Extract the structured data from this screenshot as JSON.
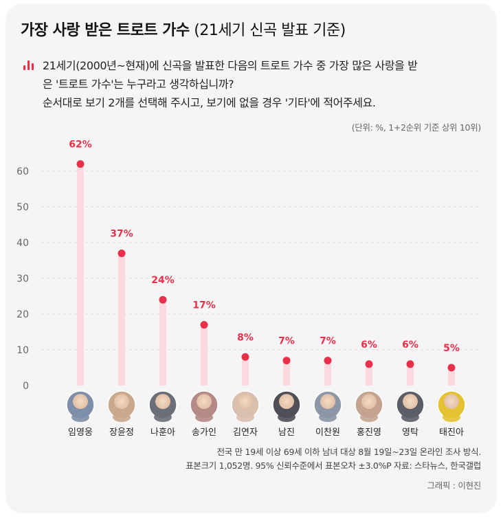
{
  "header": {
    "title_bold": "가장 사랑 받은 트로트 가수",
    "title_rest": " (21세기 신곡 발표 기준)"
  },
  "question": {
    "lines": [
      "21세기(2000년~현재)에 신곡을 발표한 다음의 트로트 가수 중 가장 많은 사랑을 받",
      "은 '트로트 가수'는 누구라고 생각하십니까?",
      "순서대로 보기 2개를 선택해 주시고, 보기에 없을 경우 '기타'에 적어주세요."
    ]
  },
  "unit_note": "(단위: %, 1+2순위 기준 상위 10위)",
  "chart_data": {
    "type": "bar",
    "categories": [
      "임영웅",
      "장윤정",
      "나훈아",
      "송가인",
      "김연자",
      "남진",
      "이찬원",
      "홍진영",
      "영탁",
      "태진아"
    ],
    "values": [
      62,
      37,
      24,
      17,
      8,
      7,
      7,
      6,
      6,
      5
    ],
    "value_labels": [
      "62%",
      "37%",
      "24%",
      "17%",
      "8%",
      "7%",
      "7%",
      "6%",
      "6%",
      "5%"
    ],
    "yticks": [
      0,
      10,
      20,
      30,
      40,
      50,
      60
    ],
    "ylim": [
      0,
      65
    ],
    "grid": true,
    "title": "",
    "xlabel": "",
    "ylabel": ""
  },
  "avatar_colors": [
    "#7d8fa8",
    "#c9a98c",
    "#6b6f77",
    "#b58a86",
    "#d8bfae",
    "#4f4f58",
    "#8d96a6",
    "#c4a490",
    "#5b5e66",
    "#e4c232"
  ],
  "colors": {
    "accent": "#e8304a",
    "bar": "#fcd9de",
    "grid": "#dddddd",
    "card": "#f5f5f5"
  },
  "footer": {
    "lines": [
      "전국 만 19세 이상 69세 이하 남녀 대상 8월 19일~23일 온라인 조사 방식.",
      "표본크기 1,052명. 95% 신뢰수준에서 표본오차 ±3.0%P 자료: 스타뉴스, 한국갤럽"
    ]
  },
  "credit": "그래픽 : 이현진"
}
